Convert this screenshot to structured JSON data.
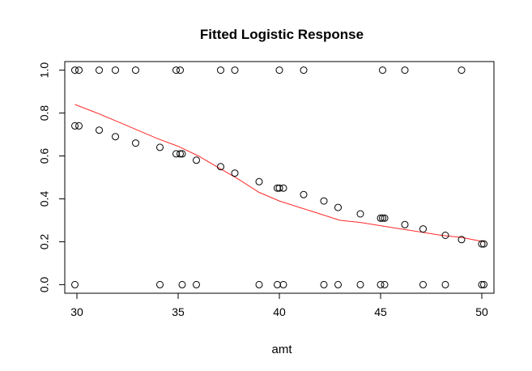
{
  "chart_data": {
    "type": "scatter",
    "title": "Fitted Logistic Response",
    "xlabel": "amt",
    "ylabel": "",
    "xlim": [
      29.4,
      50.6
    ],
    "ylim": [
      -0.04,
      1.04
    ],
    "x_ticks": [
      30,
      35,
      40,
      45,
      50
    ],
    "y_ticks": [
      0.0,
      0.2,
      0.4,
      0.6,
      0.8,
      1.0
    ],
    "x_tick_labels": [
      "30",
      "35",
      "40",
      "45",
      "50"
    ],
    "y_tick_labels": [
      "0.0",
      "0.2",
      "0.4",
      "0.6",
      "0.8",
      "1.0"
    ],
    "grid": false,
    "series": [
      {
        "marker": "open-circle",
        "color": "#000000",
        "points": [
          [
            29.9,
            1.0
          ],
          [
            30.1,
            1.0
          ],
          [
            31.1,
            1.0
          ],
          [
            31.9,
            1.0
          ],
          [
            32.9,
            1.0
          ],
          [
            34.9,
            1.0
          ],
          [
            35.1,
            1.0
          ],
          [
            37.1,
            1.0
          ],
          [
            37.8,
            1.0
          ],
          [
            40.0,
            1.0
          ],
          [
            41.2,
            1.0
          ],
          [
            45.1,
            1.0
          ],
          [
            46.2,
            1.0
          ],
          [
            49.0,
            1.0
          ],
          [
            29.9,
            0.74
          ],
          [
            30.1,
            0.74
          ],
          [
            31.1,
            0.72
          ],
          [
            31.9,
            0.69
          ],
          [
            32.9,
            0.66
          ],
          [
            34.1,
            0.64
          ],
          [
            34.9,
            0.61
          ],
          [
            35.1,
            0.61
          ],
          [
            35.2,
            0.61
          ],
          [
            35.9,
            0.58
          ],
          [
            37.1,
            0.55
          ],
          [
            37.8,
            0.52
          ],
          [
            39.0,
            0.48
          ],
          [
            39.9,
            0.45
          ],
          [
            40.0,
            0.45
          ],
          [
            40.2,
            0.45
          ],
          [
            41.2,
            0.42
          ],
          [
            42.2,
            0.39
          ],
          [
            42.9,
            0.36
          ],
          [
            44.0,
            0.33
          ],
          [
            45.0,
            0.31
          ],
          [
            45.1,
            0.31
          ],
          [
            45.2,
            0.31
          ],
          [
            46.2,
            0.28
          ],
          [
            47.1,
            0.26
          ],
          [
            48.2,
            0.23
          ],
          [
            49.0,
            0.21
          ],
          [
            50.0,
            0.19
          ],
          [
            50.1,
            0.19
          ],
          [
            29.9,
            0.0
          ],
          [
            34.1,
            0.0
          ],
          [
            35.2,
            0.0
          ],
          [
            35.9,
            0.0
          ],
          [
            39.0,
            0.0
          ],
          [
            39.9,
            0.0
          ],
          [
            40.2,
            0.0
          ],
          [
            42.2,
            0.0
          ],
          [
            42.9,
            0.0
          ],
          [
            44.0,
            0.0
          ],
          [
            45.0,
            0.0
          ],
          [
            45.2,
            0.0
          ],
          [
            47.1,
            0.0
          ],
          [
            48.2,
            0.0
          ],
          [
            50.0,
            0.0
          ],
          [
            50.1,
            0.0
          ]
        ]
      },
      {
        "type": "line",
        "color": "#ff2a2a",
        "x": [
          29.9,
          31.0,
          32.0,
          33.0,
          34.0,
          35.0,
          36.0,
          37.0,
          38.0,
          39.0,
          40.0,
          41.0,
          42.0,
          43.0,
          44.0,
          45.0,
          46.0,
          47.0,
          48.0,
          49.0,
          50.1
        ],
        "y": [
          0.84,
          0.8,
          0.76,
          0.72,
          0.68,
          0.645,
          0.6,
          0.545,
          0.49,
          0.43,
          0.39,
          0.36,
          0.33,
          0.3,
          0.29,
          0.275,
          0.26,
          0.245,
          0.23,
          0.22,
          0.2
        ]
      }
    ]
  }
}
